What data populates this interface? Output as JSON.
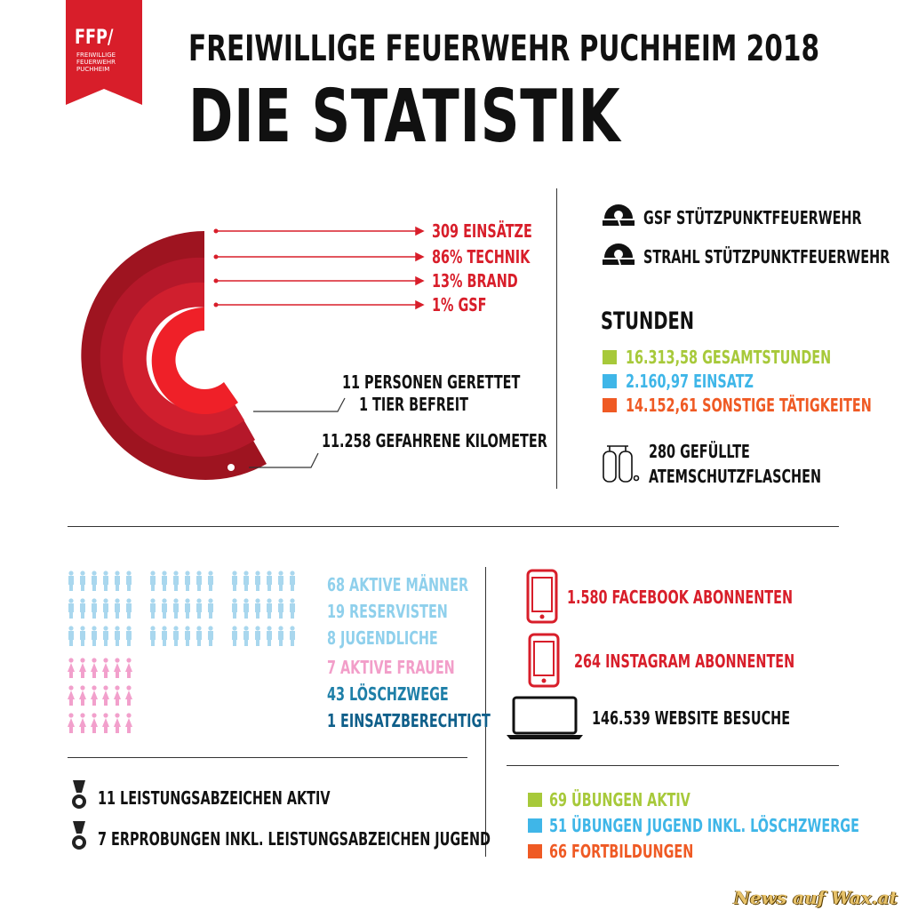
{
  "logo": {
    "text": "FFP/",
    "subtext_line1": "FREIWILLIGE",
    "subtext_line2": "FEUERWEHR",
    "subtext_line3": "PUCHHEIM",
    "color": "#d81e2a"
  },
  "header": {
    "title_line1": "FREIWILLIGE FEUERWEHR PUCHHEIM 2018",
    "title_line2": "DIE STATISTIK"
  },
  "einsaetze": {
    "items": [
      {
        "label": "309 EINSÄTZE"
      },
      {
        "label": "86% TECHNIK"
      },
      {
        "label": "13% BRAND"
      },
      {
        "label": "1% GSF"
      }
    ],
    "rescue_line1": "11 PERSONEN GERETTET",
    "rescue_line2": "1 TIER BEFREIT",
    "km": "11.258 GEFAHRENE KILOMETER",
    "ring_colors": [
      "#9e1420",
      "#b5182a",
      "#d01f2e",
      "#ef2028"
    ]
  },
  "stuetzpunkt": [
    {
      "label": "GSF STÜTZPUNKTFEUERWEHR",
      "icon": "siren-icon"
    },
    {
      "label": "STRAHL STÜTZPUNKTFEUERWEHR",
      "icon": "siren-icon"
    }
  ],
  "stunden": {
    "heading": "STUNDEN",
    "items": [
      {
        "label": "16.313,58 GESAMTSTUNDEN",
        "color": "#a7c93a"
      },
      {
        "label": "2.160,97 EINSATZ",
        "color": "#3fb6e8"
      },
      {
        "label": "14.152,61 SONSTIGE TÄTIGKEITEN",
        "color": "#ef5a24"
      }
    ]
  },
  "atemschutz": {
    "line1": "280 GEFÜLLTE",
    "line2": "ATEMSCHUTZFLASCHEN",
    "icon": "air-tank-icon"
  },
  "mitglieder": [
    {
      "label": "68 AKTIVE MÄNNER"
    },
    {
      "label": "19 RESERVISTEN"
    },
    {
      "label": "8 JUGENDLICHE"
    },
    {
      "label": "7 AKTIVE FRAUEN"
    },
    {
      "label": "43 LÖSCHZWEGE"
    },
    {
      "label": "1 EINSATZBERECHTIGT"
    }
  ],
  "abzeichen": [
    {
      "label": "11 LEISTUNGSABZEICHEN AKTIV",
      "icon": "medal-icon"
    },
    {
      "label": "7 ERPROBUNGEN INKL. LEISTUNGSABZEICHEN JUGEND",
      "icon": "medal-icon"
    }
  ],
  "social": [
    {
      "label": "1.580 FACEBOOK ABONNENTEN",
      "icon": "smartphone-icon"
    },
    {
      "label": "264 INSTAGRAM ABONNENTEN",
      "icon": "smartphone-icon"
    },
    {
      "label": "146.539 WEBSITE BESUCHE",
      "icon": "laptop-icon"
    }
  ],
  "uebungen": [
    {
      "label": "69 ÜBUNGEN AKTIV",
      "color": "#a7c93a"
    },
    {
      "label": "51 ÜBUNGEN JUGEND INKL. LÖSCHZWERGE",
      "color": "#3fb6e8"
    },
    {
      "label": "66 FORTBILDUNGEN",
      "color": "#ef5a24"
    }
  ],
  "watermark": "News auf Wax.at"
}
